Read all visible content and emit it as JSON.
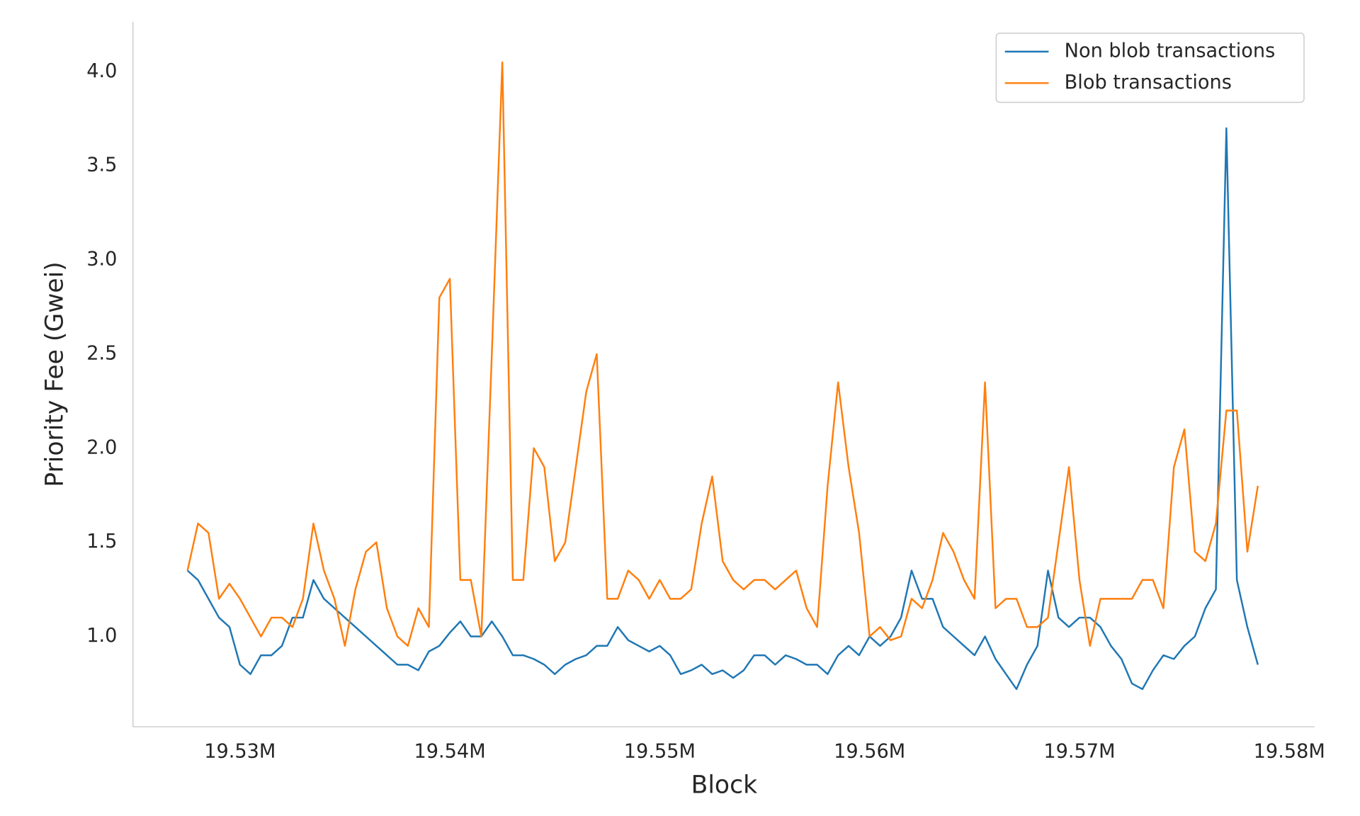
{
  "chart_data": {
    "type": "line",
    "xlabel": "Block",
    "ylabel": "Priority Fee (Gwei)",
    "x": [
      19527500,
      19528000,
      19528500,
      19529000,
      19529500,
      19530000,
      19530500,
      19531000,
      19531500,
      19532000,
      19532500,
      19533000,
      19533500,
      19534000,
      19534500,
      19535000,
      19535500,
      19536000,
      19536500,
      19537000,
      19537500,
      19538000,
      19538500,
      19539000,
      19539500,
      19540000,
      19540500,
      19541000,
      19541500,
      19542000,
      19542500,
      19543000,
      19543500,
      19544000,
      19544500,
      19545000,
      19545500,
      19546000,
      19546500,
      19547000,
      19547500,
      19548000,
      19548500,
      19549000,
      19549500,
      19550000,
      19550500,
      19551000,
      19551500,
      19552000,
      19552500,
      19553000,
      19553500,
      19554000,
      19554500,
      19555000,
      19555500,
      19556000,
      19556500,
      19557000,
      19557500,
      19558000,
      19558500,
      19559000,
      19559500,
      19560000,
      19560500,
      19561000,
      19561500,
      19562000,
      19562500,
      19563000,
      19563500,
      19564000,
      19564500,
      19565000,
      19565500,
      19566000,
      19566500,
      19567000,
      19567500,
      19568000,
      19568500,
      19569000,
      19569500,
      19570000,
      19570500,
      19571000,
      19571500,
      19572000,
      19572500,
      19573000,
      19573500,
      19574000,
      19574500,
      19575000,
      19575500,
      19576000,
      19576500,
      19577000,
      19577500,
      19578000,
      19578500
    ],
    "series": [
      {
        "name": "Non blob transactions",
        "color": "#1f77b4",
        "values": [
          1.35,
          1.3,
          1.2,
          1.1,
          1.05,
          0.85,
          0.8,
          0.9,
          0.9,
          0.95,
          1.1,
          1.1,
          1.3,
          1.2,
          1.15,
          1.1,
          1.05,
          1.0,
          0.95,
          0.9,
          0.85,
          0.85,
          0.82,
          0.92,
          0.95,
          1.02,
          1.08,
          1.0,
          1.0,
          1.08,
          1.0,
          0.9,
          0.9,
          0.88,
          0.85,
          0.8,
          0.85,
          0.88,
          0.9,
          0.95,
          0.95,
          1.05,
          0.98,
          0.95,
          0.92,
          0.95,
          0.9,
          0.8,
          0.82,
          0.85,
          0.8,
          0.82,
          0.78,
          0.82,
          0.9,
          0.9,
          0.85,
          0.9,
          0.88,
          0.85,
          0.85,
          0.8,
          0.9,
          0.95,
          0.9,
          1.0,
          0.95,
          1.0,
          1.1,
          1.35,
          1.2,
          1.2,
          1.05,
          1.0,
          0.95,
          0.9,
          1.0,
          0.88,
          0.8,
          0.72,
          0.85,
          0.95,
          1.35,
          1.1,
          1.05,
          1.1,
          1.1,
          1.05,
          0.95,
          0.88,
          0.75,
          0.72,
          0.82,
          0.9,
          0.88,
          0.95,
          1.0,
          1.15,
          1.25,
          3.7,
          1.3,
          1.05,
          0.85
        ]
      },
      {
        "name": "Blob transactions",
        "color": "#ff7f0e",
        "values": [
          1.35,
          1.6,
          1.55,
          1.2,
          1.28,
          1.2,
          1.1,
          1.0,
          1.1,
          1.1,
          1.05,
          1.2,
          1.6,
          1.35,
          1.2,
          0.95,
          1.25,
          1.45,
          1.5,
          1.15,
          1.0,
          0.95,
          1.15,
          1.05,
          2.8,
          2.9,
          1.3,
          1.3,
          1.0,
          2.5,
          4.05,
          1.3,
          1.3,
          2.0,
          1.9,
          1.4,
          1.5,
          1.9,
          2.3,
          2.5,
          1.2,
          1.2,
          1.35,
          1.3,
          1.2,
          1.3,
          1.2,
          1.2,
          1.25,
          1.6,
          1.85,
          1.4,
          1.3,
          1.25,
          1.3,
          1.3,
          1.25,
          1.3,
          1.35,
          1.15,
          1.05,
          1.8,
          2.35,
          1.9,
          1.55,
          1.0,
          1.05,
          0.98,
          1.0,
          1.2,
          1.15,
          1.3,
          1.55,
          1.45,
          1.3,
          1.2,
          2.35,
          1.15,
          1.2,
          1.2,
          1.05,
          1.05,
          1.1,
          1.5,
          1.9,
          1.3,
          0.95,
          1.2,
          1.2,
          1.2,
          1.2,
          1.3,
          1.3,
          1.15,
          1.9,
          2.1,
          1.45,
          1.4,
          1.6,
          2.2,
          2.2,
          1.45,
          1.8
        ]
      }
    ],
    "xlim": [
      19524900,
      19581200
    ],
    "xticks": [
      {
        "value": 19530000,
        "label": "19.53M"
      },
      {
        "value": 19540000,
        "label": "19.54M"
      },
      {
        "value": 19550000,
        "label": "19.55M"
      },
      {
        "value": 19560000,
        "label": "19.56M"
      },
      {
        "value": 19570000,
        "label": "19.57M"
      },
      {
        "value": 19580000,
        "label": "19.58M"
      }
    ],
    "ylim": [
      0.52,
      4.265
    ],
    "yticks": [
      {
        "value": 1,
        "label": "1.0"
      },
      {
        "value": 1.5,
        "label": "1.5"
      },
      {
        "value": 2,
        "label": "2.0"
      },
      {
        "value": 2.5,
        "label": "2.5"
      },
      {
        "value": 3,
        "label": "3.0"
      },
      {
        "value": 3.5,
        "label": "3.5"
      },
      {
        "value": 4,
        "label": "4.0"
      }
    ],
    "grid": false,
    "legend": "upper right"
  }
}
